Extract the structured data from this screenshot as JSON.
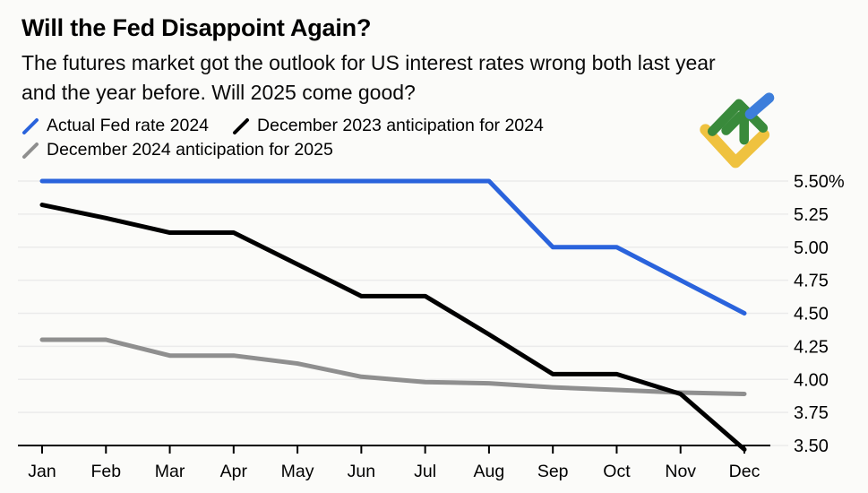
{
  "header": {
    "title": "Will the Fed Disappoint Again?",
    "subtitle_lines": [
      "The futures market got the outlook for US interest rates wrong both last year",
      "and the year before. Will 2025 come good?"
    ]
  },
  "branding": {
    "logo": "litefinance-logo",
    "logo_colors": {
      "green": "#398A3B",
      "blue": "#3D7EDB",
      "yellow": "#EFC23F"
    }
  },
  "chart_data": {
    "type": "line",
    "title": "Will the Fed Disappoint Again?",
    "subtitle": "The futures market got the outlook for US interest rates wrong both last year and the year before. Will 2025 come good?",
    "categories": [
      "Jan",
      "Feb",
      "Mar",
      "Apr",
      "May",
      "Jun",
      "Jul",
      "Aug",
      "Sep",
      "Oct",
      "Nov",
      "Dec"
    ],
    "series": [
      {
        "name": "Actual Fed rate 2024",
        "color": "#2A63DC",
        "values": [
          5.5,
          5.5,
          5.5,
          5.5,
          5.5,
          5.5,
          5.5,
          5.5,
          5.0,
          5.0,
          4.75,
          4.5
        ]
      },
      {
        "name": "December 2023 anticipation for 2024",
        "color": "#000000",
        "values": [
          5.32,
          5.22,
          5.11,
          5.11,
          4.87,
          4.63,
          4.63,
          4.34,
          4.04,
          4.04,
          3.89,
          3.47
        ]
      },
      {
        "name": "December 2024 anticipation for 2025",
        "color": "#8F8F8F",
        "values": [
          4.3,
          4.3,
          4.18,
          4.18,
          4.12,
          4.02,
          3.98,
          3.97,
          3.94,
          3.92,
          3.9,
          3.89
        ]
      }
    ],
    "xlabel": "",
    "ylabel": "",
    "y_axis": {
      "side": "right",
      "min": 3.5,
      "max": 5.5,
      "tick_step": 0.25,
      "tick_labels_top_to_bottom": [
        "5.50%",
        "5.25",
        "5.00",
        "4.75",
        "4.50",
        "4.25",
        "4.00",
        "3.75",
        "3.50"
      ]
    },
    "legend_position": "top-left",
    "grid": "horizontal",
    "grid_color": "#EBEBEB",
    "axis_color": "#000000",
    "background_color": "#FBFBF9"
  }
}
